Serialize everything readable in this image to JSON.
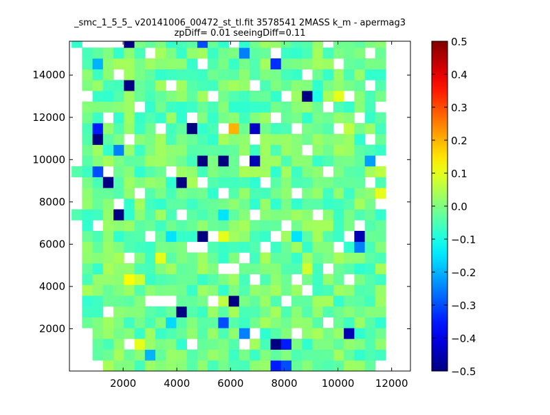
{
  "chart_data": {
    "type": "heatmap",
    "title": "_smc_1_5_5_ v20141006_00472_st_tl.fit 3578541 2MASS k_m - apermag3",
    "subtitle": "zpDiff= 0.01 seeingDiff=0.11",
    "xlabel": "",
    "ylabel": "",
    "xlim": [
      0,
      12700
    ],
    "ylim": [
      0,
      15600
    ],
    "x_ticks": [
      2000,
      4000,
      6000,
      8000,
      10000,
      12000
    ],
    "y_ticks": [
      2000,
      4000,
      6000,
      8000,
      10000,
      12000,
      14000
    ],
    "colormap": "jet",
    "colorbar": {
      "range": [
        -0.5,
        0.5
      ],
      "ticks": [
        -0.5,
        -0.4,
        -0.3,
        -0.2,
        -0.1,
        0.0,
        0.1,
        0.2,
        0.3,
        0.4,
        0.5
      ],
      "tick_labels": [
        "−0.5",
        "−0.4",
        "−0.3",
        "−0.2",
        "−0.1",
        "0.0",
        "0.1",
        "0.2",
        "0.3",
        "0.4",
        "0.5"
      ]
    },
    "bin_size_x": 390,
    "bin_size_y": 510,
    "grid_x_origin": 80,
    "grid_y_origin": 0,
    "grid_cols": 32,
    "grid_rows": 31,
    "base_value": -0.02,
    "empty_cells": [
      [
        5,
        2
      ],
      [
        11,
        2
      ],
      [
        16,
        2
      ],
      [
        17,
        3
      ],
      [
        21,
        3
      ],
      [
        24,
        4
      ],
      [
        30,
        4
      ],
      [
        3,
        5
      ],
      [
        7,
        6
      ],
      [
        8,
        6
      ],
      [
        9,
        6
      ],
      [
        13,
        6
      ],
      [
        20,
        6
      ],
      [
        22,
        7
      ],
      [
        17,
        8
      ],
      [
        21,
        8
      ],
      [
        26,
        8
      ],
      [
        14,
        9
      ],
      [
        15,
        9
      ],
      [
        24,
        9
      ],
      [
        30,
        9
      ],
      [
        5,
        10
      ],
      [
        16,
        10
      ],
      [
        11,
        11
      ],
      [
        12,
        11
      ],
      [
        18,
        11
      ],
      [
        25,
        11
      ],
      [
        7,
        12
      ],
      [
        13,
        12
      ],
      [
        19,
        12
      ],
      [
        26,
        12
      ],
      [
        2,
        13
      ],
      [
        20,
        13
      ],
      [
        27,
        13
      ],
      [
        10,
        14
      ],
      [
        17,
        14
      ],
      [
        23,
        14
      ],
      [
        4,
        15
      ],
      [
        29,
        15
      ],
      [
        6,
        16
      ],
      [
        14,
        16
      ],
      [
        21,
        16
      ],
      [
        12,
        17
      ],
      [
        18,
        17
      ],
      [
        28,
        17
      ],
      [
        3,
        18
      ],
      [
        9,
        18
      ],
      [
        24,
        18
      ],
      [
        16,
        19
      ],
      [
        29,
        19
      ],
      [
        22,
        20
      ],
      [
        5,
        21
      ],
      [
        17,
        21
      ],
      [
        28,
        21
      ],
      [
        8,
        22
      ],
      [
        14,
        22
      ],
      [
        21,
        22
      ],
      [
        25,
        22
      ],
      [
        3,
        23
      ],
      [
        11,
        23
      ],
      [
        19,
        23
      ],
      [
        27,
        23
      ],
      [
        6,
        24
      ],
      [
        24,
        24
      ],
      [
        29,
        24
      ],
      [
        1,
        25
      ],
      [
        13,
        25
      ],
      [
        20,
        25
      ],
      [
        26,
        25
      ],
      [
        9,
        26
      ],
      [
        17,
        26
      ],
      [
        28,
        26
      ],
      [
        4,
        27
      ],
      [
        22,
        27
      ],
      [
        12,
        28
      ],
      [
        25,
        28
      ],
      [
        7,
        29
      ],
      [
        19,
        29
      ],
      [
        28,
        29
      ],
      [
        1,
        30
      ],
      [
        15,
        30
      ],
      [
        24,
        30
      ],
      [
        2,
        30
      ],
      [
        3,
        30
      ],
      [
        4,
        30
      ],
      [
        0,
        29
      ],
      [
        0,
        28
      ],
      [
        0,
        27
      ],
      [
        0,
        26
      ],
      [
        0,
        25
      ],
      [
        0,
        24
      ],
      [
        0,
        23
      ],
      [
        0,
        22
      ],
      [
        0,
        21
      ],
      [
        0,
        20
      ],
      [
        0,
        19
      ],
      [
        0,
        17
      ],
      [
        0,
        16
      ],
      [
        0,
        15
      ],
      [
        0,
        13
      ],
      [
        0,
        12
      ],
      [
        0,
        11
      ],
      [
        0,
        10
      ],
      [
        0,
        9
      ],
      [
        0,
        8
      ],
      [
        0,
        7
      ],
      [
        0,
        6
      ],
      [
        0,
        5
      ],
      [
        0,
        4
      ],
      [
        0,
        3
      ],
      [
        0,
        2
      ],
      [
        0,
        1
      ],
      [
        0,
        0
      ],
      [
        31,
        30
      ],
      [
        31,
        29
      ],
      [
        31,
        28
      ],
      [
        31,
        27
      ],
      [
        31,
        26
      ],
      [
        31,
        25
      ],
      [
        31,
        24
      ],
      [
        31,
        23
      ],
      [
        31,
        22
      ],
      [
        31,
        21
      ],
      [
        31,
        20
      ],
      [
        31,
        19
      ],
      [
        31,
        18
      ],
      [
        31,
        17
      ],
      [
        31,
        16
      ],
      [
        31,
        15
      ],
      [
        31,
        14
      ],
      [
        31,
        13
      ],
      [
        31,
        12
      ],
      [
        31,
        11
      ],
      [
        31,
        10
      ],
      [
        31,
        9
      ],
      [
        31,
        8
      ],
      [
        31,
        7
      ],
      [
        31,
        6
      ],
      [
        31,
        5
      ],
      [
        31,
        4
      ],
      [
        31,
        3
      ],
      [
        31,
        2
      ],
      [
        31,
        1
      ],
      [
        31,
        0
      ],
      [
        30,
        30
      ],
      [
        30,
        29
      ],
      [
        30,
        28
      ],
      [
        30,
        27
      ],
      [
        30,
        26
      ],
      [
        30,
        25
      ],
      [
        30,
        24
      ],
      [
        30,
        23
      ],
      [
        30,
        22
      ],
      [
        30,
        21
      ],
      [
        30,
        20
      ],
      [
        30,
        19
      ],
      [
        30,
        18
      ],
      [
        30,
        17
      ],
      [
        30,
        16
      ],
      [
        30,
        15
      ],
      [
        30,
        14
      ],
      [
        30,
        13
      ],
      [
        30,
        12
      ],
      [
        30,
        11
      ],
      [
        30,
        10
      ],
      [
        30,
        8
      ],
      [
        30,
        7
      ],
      [
        30,
        6
      ],
      [
        30,
        5
      ],
      [
        30,
        3
      ],
      [
        30,
        2
      ],
      [
        30,
        1
      ],
      [
        30,
        0
      ],
      [
        29,
        0
      ],
      [
        1,
        0
      ],
      [
        2,
        0
      ],
      [
        1,
        1
      ],
      [
        1,
        2
      ],
      [
        1,
        3
      ]
    ],
    "special_cells": [
      {
        "col": 5,
        "row": 30,
        "value": -0.5
      },
      {
        "col": 12,
        "row": 30,
        "value": -0.3
      },
      {
        "col": 16,
        "row": 29,
        "value": -0.25
      },
      {
        "col": 19,
        "row": 28,
        "value": -0.33
      },
      {
        "col": 2,
        "row": 28,
        "value": -0.2
      },
      {
        "col": 5,
        "row": 26,
        "value": -0.5
      },
      {
        "col": 23,
        "row": 25,
        "value": -0.1
      },
      {
        "col": 22,
        "row": 25,
        "value": -0.5
      },
      {
        "col": 25,
        "row": 25,
        "value": 0.1
      },
      {
        "col": 19,
        "row": 23,
        "value": -0.5
      },
      {
        "col": 15,
        "row": 22,
        "value": 0.2
      },
      {
        "col": 17,
        "row": 22,
        "value": -0.43
      },
      {
        "col": 11,
        "row": 22,
        "value": -0.5
      },
      {
        "col": 2,
        "row": 22,
        "value": -0.35
      },
      {
        "col": 2,
        "row": 21,
        "value": -0.5
      },
      {
        "col": 17,
        "row": 21,
        "value": -0.5
      },
      {
        "col": 4,
        "row": 20,
        "value": -0.25
      },
      {
        "col": 17,
        "row": 19,
        "value": -0.45
      },
      {
        "col": 12,
        "row": 19,
        "value": -0.5
      },
      {
        "col": 14,
        "row": 19,
        "value": -0.5
      },
      {
        "col": 28,
        "row": 19,
        "value": -0.22
      },
      {
        "col": 2,
        "row": 18,
        "value": -0.3
      },
      {
        "col": 3,
        "row": 17,
        "value": -0.5
      },
      {
        "col": 10,
        "row": 17,
        "value": -0.5
      },
      {
        "col": 29,
        "row": 15,
        "value": 0.1
      },
      {
        "col": 4,
        "row": 14,
        "value": -0.5
      },
      {
        "col": 14,
        "row": 14,
        "value": -0.15
      },
      {
        "col": 12,
        "row": 12,
        "value": -0.5
      },
      {
        "col": 14,
        "row": 12,
        "value": 0.1
      },
      {
        "col": 27,
        "row": 12,
        "value": -0.45
      },
      {
        "col": 21,
        "row": 12,
        "value": -0.15
      },
      {
        "col": 27,
        "row": 11,
        "value": -0.25
      },
      {
        "col": 22,
        "row": 9,
        "value": 0.08
      },
      {
        "col": 13,
        "row": 6,
        "value": -0.3
      },
      {
        "col": 15,
        "row": 6,
        "value": -0.5
      },
      {
        "col": 10,
        "row": 5,
        "value": -0.5
      },
      {
        "col": 14,
        "row": 4,
        "value": -0.3
      },
      {
        "col": 26,
        "row": 3,
        "value": -0.45
      },
      {
        "col": 16,
        "row": 3,
        "value": -0.25
      },
      {
        "col": 19,
        "row": 2,
        "value": -0.5
      },
      {
        "col": 20,
        "row": 2,
        "value": -0.35
      },
      {
        "col": 19,
        "row": 0,
        "value": -0.35
      },
      {
        "col": 20,
        "row": 0,
        "value": -0.3
      },
      {
        "col": 7,
        "row": 1,
        "value": -0.2
      },
      {
        "col": 6,
        "row": 2,
        "value": 0.1
      },
      {
        "col": 5,
        "row": 2,
        "value": 0.1
      },
      {
        "col": 8,
        "row": 10,
        "value": 0.1
      },
      {
        "col": 14,
        "row": 6,
        "value": 0.06
      },
      {
        "col": 5,
        "row": 8,
        "value": 0.12
      },
      {
        "col": 6,
        "row": 8,
        "value": 0.08
      },
      {
        "col": 24,
        "row": 24,
        "value": 0.12
      },
      {
        "col": 17,
        "row": 17,
        "value": -0.08
      },
      {
        "col": 26,
        "row": 22,
        "value": 0.06
      },
      {
        "col": 9,
        "row": 12,
        "value": -0.15
      },
      {
        "col": 21,
        "row": 3,
        "value": -0.16
      },
      {
        "col": 9,
        "row": 4,
        "value": -0.16
      },
      {
        "col": 29,
        "row": 16,
        "value": 0.1
      },
      {
        "col": 29,
        "row": 18,
        "value": 0.06
      }
    ]
  }
}
